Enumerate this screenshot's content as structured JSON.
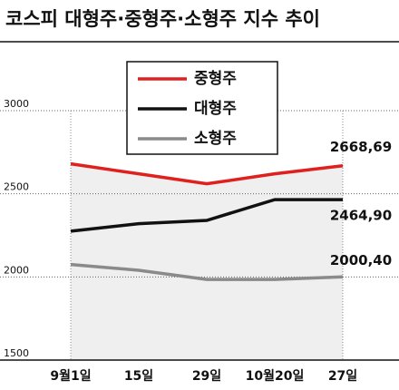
{
  "chart_data": {
    "type": "line",
    "title": "코스피 대형주·중형주·소형주 지수 추이",
    "categories": [
      "9월1일",
      "15일",
      "29일",
      "10월20일",
      "27일"
    ],
    "series": [
      {
        "name": "중형주",
        "color": "#e0201f",
        "values": [
          2680,
          2620,
          2560,
          2620,
          2668.69
        ],
        "value_labels": [
          null,
          null,
          null,
          null,
          "2668,69"
        ]
      },
      {
        "name": "대형주",
        "color": "#111111",
        "values": [
          2275,
          2320,
          2340,
          2465,
          2464.9
        ],
        "value_labels": [
          null,
          null,
          null,
          null,
          "2464,90"
        ]
      },
      {
        "name": "소형주",
        "color": "#8a8a8a",
        "values": [
          2075,
          2040,
          1985,
          1985,
          2000.4
        ],
        "value_labels": [
          null,
          null,
          null,
          null,
          "2000,40"
        ]
      }
    ],
    "ylim": [
      1500,
      3000
    ],
    "yticks": [
      1500,
      2000,
      2500,
      3000
    ],
    "grid": true
  }
}
